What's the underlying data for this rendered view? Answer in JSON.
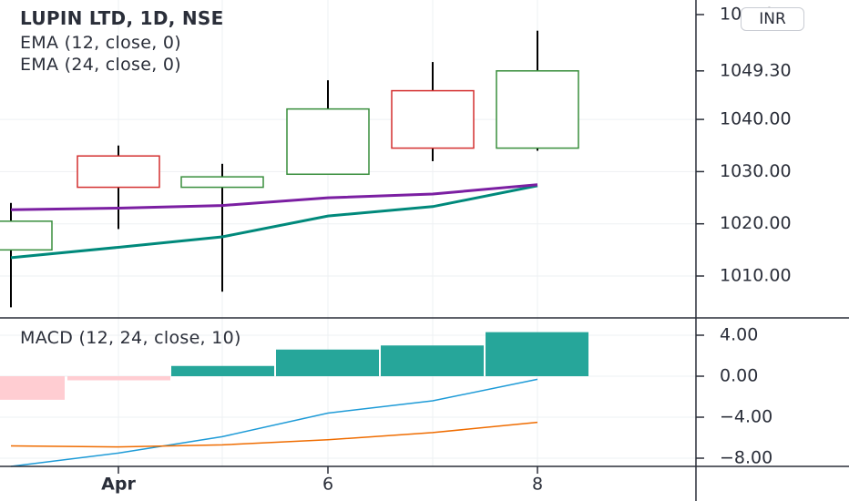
{
  "legend": {
    "title": "LUPIN LTD, 1D, NSE",
    "ema12": "EMA (12, close, 0)",
    "ema24": "EMA (24, close, 0)",
    "macd": "MACD (12, 24, close, 10)"
  },
  "currency_button": "INR",
  "colors": {
    "up": "#26a69a",
    "up_candle": "#388e3c",
    "down_candle": "#d32f2f",
    "wick": "#000000",
    "ema12": "#7b1fa2",
    "ema24": "#00897b",
    "hist_pos": "#26a69a",
    "hist_neg": "#ffcdd2",
    "macd_line": "#1e9bd7",
    "signal_line": "#ef6c00",
    "grid": "#eef0f3",
    "axis": "#2a2e39"
  },
  "chart_data": [
    {
      "type": "candlestick",
      "x_ticks": [
        "Apr",
        "6",
        "8"
      ],
      "y_ticks": [
        "1010.00",
        "1020.00",
        "1030.00",
        "1040.00"
      ],
      "partial_top_tick": "10    0",
      "last_price_label": "1049.30",
      "ylim": [
        1001,
        1065
      ],
      "candles": [
        {
          "open": 1015,
          "close": 1020.5,
          "high": 1024,
          "low": 1004,
          "dir": "up"
        },
        {
          "open": 1033,
          "close": 1027,
          "high": 1035,
          "low": 1019,
          "dir": "down"
        },
        {
          "open": 1027,
          "close": 1029,
          "high": 1031.5,
          "low": 1007,
          "dir": "up"
        },
        {
          "open": 1029.5,
          "close": 1042,
          "high": 1047.5,
          "low": 1029.5,
          "dir": "up"
        },
        {
          "open": 1045.5,
          "close": 1034.5,
          "high": 1051,
          "low": 1032,
          "dir": "down"
        },
        {
          "open": 1034.5,
          "close": 1049.3,
          "high": 1057,
          "low": 1034,
          "dir": "up"
        }
      ],
      "ema12": [
        1022.7,
        1023,
        1023.5,
        1025,
        1025.7,
        1027.5
      ],
      "ema24": [
        1013.5,
        1015.5,
        1017.5,
        1021.5,
        1023.3,
        1027.3
      ]
    },
    {
      "type": "macd",
      "y_ticks": [
        "4.00",
        "0.00",
        "−4.00",
        "−8.00"
      ],
      "ylim": [
        -9,
        5.5
      ],
      "histogram": [
        -2.3,
        -0.4,
        1.0,
        2.6,
        3.0,
        4.3
      ],
      "macd": [
        -8.8,
        -7.5,
        -5.9,
        -3.6,
        -2.4,
        -0.3
      ],
      "signal": [
        -6.8,
        -6.9,
        -6.7,
        -6.2,
        -5.5,
        -4.5
      ]
    }
  ]
}
